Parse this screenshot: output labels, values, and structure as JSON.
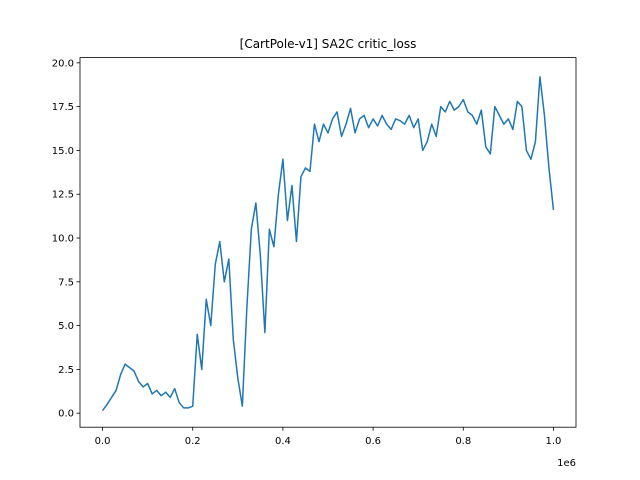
{
  "chart_data": {
    "type": "line",
    "title": "[CartPole-v1] SA2C critic_loss",
    "x_offset_label": "1e6",
    "x": [
      0,
      10000,
      20000,
      30000,
      40000,
      50000,
      60000,
      70000,
      80000,
      90000,
      100000,
      110000,
      120000,
      130000,
      140000,
      150000,
      160000,
      170000,
      180000,
      190000,
      200000,
      210000,
      220000,
      230000,
      240000,
      250000,
      260000,
      270000,
      280000,
      290000,
      300000,
      310000,
      320000,
      330000,
      340000,
      350000,
      360000,
      370000,
      380000,
      390000,
      400000,
      410000,
      420000,
      430000,
      440000,
      450000,
      460000,
      470000,
      480000,
      490000,
      500000,
      510000,
      520000,
      530000,
      540000,
      550000,
      560000,
      570000,
      580000,
      590000,
      600000,
      610000,
      620000,
      630000,
      640000,
      650000,
      660000,
      670000,
      680000,
      690000,
      700000,
      710000,
      720000,
      730000,
      740000,
      750000,
      760000,
      770000,
      780000,
      790000,
      800000,
      810000,
      820000,
      830000,
      840000,
      850000,
      860000,
      870000,
      880000,
      890000,
      900000,
      910000,
      920000,
      930000,
      940000,
      950000,
      960000,
      970000,
      980000,
      990000,
      1000000
    ],
    "series": [
      {
        "name": "critic_loss",
        "color": "#1f77b4",
        "values": [
          0.15,
          0.5,
          0.9,
          1.3,
          2.2,
          2.8,
          2.6,
          2.4,
          1.8,
          1.5,
          1.7,
          1.1,
          1.3,
          1.0,
          1.2,
          0.9,
          1.4,
          0.6,
          0.3,
          0.3,
          0.4,
          4.5,
          2.5,
          6.5,
          5.0,
          8.5,
          9.8,
          7.5,
          8.8,
          4.2,
          2.0,
          0.4,
          6.0,
          10.5,
          12.0,
          9.0,
          4.6,
          10.5,
          9.5,
          12.5,
          14.5,
          11.0,
          13.0,
          9.8,
          13.5,
          14.0,
          13.8,
          16.5,
          15.5,
          16.5,
          16.0,
          16.8,
          17.2,
          15.8,
          16.5,
          17.4,
          16.0,
          16.8,
          17.0,
          16.3,
          16.8,
          16.4,
          17.0,
          16.5,
          16.2,
          16.8,
          16.7,
          16.5,
          17.0,
          16.3,
          16.8,
          15.0,
          15.5,
          16.5,
          15.8,
          17.5,
          17.2,
          17.8,
          17.3,
          17.5,
          17.9,
          17.2,
          17.0,
          16.5,
          17.3,
          15.2,
          14.8,
          17.5,
          17.0,
          16.5,
          16.8,
          16.2,
          17.8,
          17.5,
          15.0,
          14.5,
          15.5,
          19.2,
          17.0,
          14.0,
          11.6
        ]
      }
    ],
    "xlim": [
      -50000,
      1050000
    ],
    "xticks": [
      {
        "value": 0,
        "label": "0.0"
      },
      {
        "value": 200000,
        "label": "0.2"
      },
      {
        "value": 400000,
        "label": "0.4"
      },
      {
        "value": 600000,
        "label": "0.6"
      },
      {
        "value": 800000,
        "label": "0.8"
      },
      {
        "value": 1000000,
        "label": "1.0"
      }
    ],
    "ylim": [
      -0.8,
      20.3
    ],
    "yticks": [
      {
        "value": 0,
        "label": "0.0"
      },
      {
        "value": 2.5,
        "label": "2.5"
      },
      {
        "value": 5,
        "label": "5.0"
      },
      {
        "value": 7.5,
        "label": "7.5"
      },
      {
        "value": 10,
        "label": "10.0"
      },
      {
        "value": 12.5,
        "label": "12.5"
      },
      {
        "value": 15,
        "label": "15.0"
      },
      {
        "value": 17.5,
        "label": "17.5"
      },
      {
        "value": 20,
        "label": "20.0"
      }
    ],
    "grid": false
  }
}
